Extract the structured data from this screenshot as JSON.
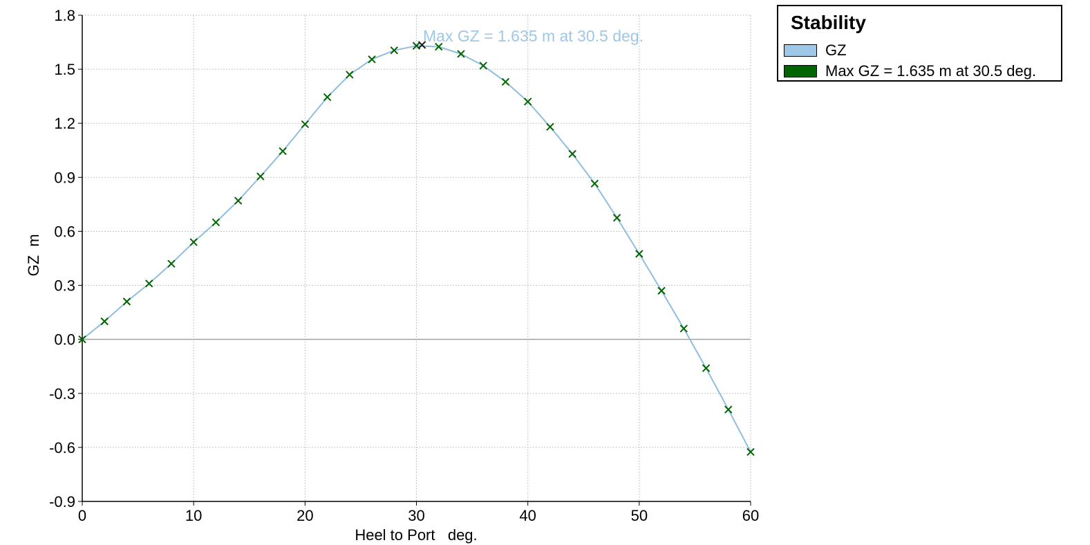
{
  "chart_data": {
    "type": "line",
    "title": "",
    "annotation": "Max GZ = 1.635 m at 30.5 deg.",
    "xlabel": "Heel to Port   deg.",
    "ylabel": "GZ  m",
    "xlim": [
      0,
      60
    ],
    "ylim": [
      -0.9,
      1.8
    ],
    "x_ticks": [
      0,
      10,
      20,
      30,
      40,
      50,
      60
    ],
    "x_tick_labels": [
      "0",
      "10",
      "20",
      "30",
      "40",
      "50",
      "60"
    ],
    "y_ticks": [
      -0.9,
      -0.6,
      -0.3,
      0.0,
      0.3,
      0.6,
      0.9,
      1.2,
      1.5,
      1.8
    ],
    "y_tick_labels": [
      "-0.9",
      "-0.6",
      "-0.3",
      "0.0",
      "0.3",
      "0.6",
      "0.9",
      "1.2",
      "1.5",
      "1.8"
    ],
    "grid": true,
    "legend_position": "top-right, outside plot",
    "series": [
      {
        "name": "GZ",
        "color": "#8fbde0",
        "line": true,
        "marker_color": "#006400",
        "x": [
          0,
          2,
          4,
          6,
          8,
          10,
          12,
          14,
          16,
          18,
          20,
          22,
          24,
          26,
          28,
          30,
          32,
          34,
          36,
          38,
          40,
          42,
          44,
          46,
          48,
          50,
          52,
          54,
          56,
          58,
          60
        ],
        "y": [
          0.0,
          0.1,
          0.21,
          0.31,
          0.42,
          0.54,
          0.65,
          0.77,
          0.905,
          1.045,
          1.195,
          1.345,
          1.47,
          1.555,
          1.605,
          1.63,
          1.625,
          1.585,
          1.52,
          1.43,
          1.32,
          1.18,
          1.03,
          0.865,
          0.675,
          0.475,
          0.27,
          0.06,
          -0.16,
          -0.39,
          -0.625
        ]
      },
      {
        "name": "Max GZ = 1.635 m at 30.5 deg.",
        "color": "#006400",
        "x": [
          30.5
        ],
        "y": [
          1.635
        ]
      }
    ]
  },
  "legend": {
    "title": "Stability",
    "items": [
      {
        "label": "GZ",
        "color": "#9fc7e8"
      },
      {
        "label": "Max GZ = 1.635 m at 30.5 deg.",
        "color": "#006400"
      }
    ]
  }
}
